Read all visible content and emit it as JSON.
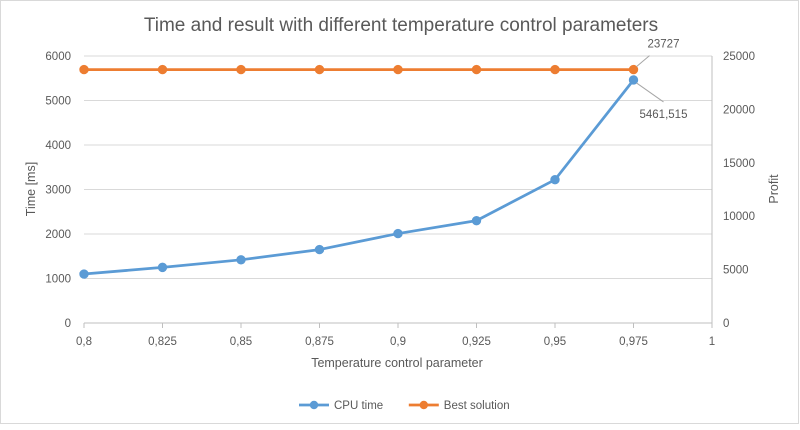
{
  "chart_data": {
    "type": "line",
    "title": "Time and result with different temperature control parameters",
    "xlabel": "Temperature control parameter",
    "ylabel_left": "Time [ms]",
    "ylabel_right": "Profit",
    "x_ticks": [
      "0,8",
      "0,825",
      "0,85",
      "0,875",
      "0,9",
      "0,925",
      "0,95",
      "0,975",
      "1"
    ],
    "y_left_ticks": [
      "0",
      "1000",
      "2000",
      "3000",
      "4000",
      "5000",
      "6000"
    ],
    "y_right_ticks": [
      "0",
      "5000",
      "10000",
      "15000",
      "20000",
      "25000"
    ],
    "ylim_left": [
      0,
      6000
    ],
    "ylim_right": [
      0,
      25000
    ],
    "xlim": [
      0.8,
      1.0
    ],
    "grid": "horizontal",
    "legend_position": "bottom",
    "series": [
      {
        "name": "CPU time",
        "axis": "left",
        "color": "#5b9bd5",
        "x": [
          0.8,
          0.825,
          0.85,
          0.875,
          0.9,
          0.925,
          0.95,
          0.975
        ],
        "values": [
          1100,
          1250,
          1420,
          1650,
          2010,
          2300,
          3220,
          5461.515
        ]
      },
      {
        "name": "Best solution",
        "axis": "right",
        "color": "#ed7d31",
        "x": [
          0.8,
          0.825,
          0.85,
          0.875,
          0.9,
          0.925,
          0.95,
          0.975
        ],
        "values": [
          23727,
          23727,
          23727,
          23727,
          23727,
          23727,
          23727,
          23727
        ]
      }
    ],
    "annotations": [
      {
        "text": "23727",
        "series": "Best solution",
        "point_index": 7
      },
      {
        "text": "5461,515",
        "series": "CPU time",
        "point_index": 7
      }
    ]
  }
}
